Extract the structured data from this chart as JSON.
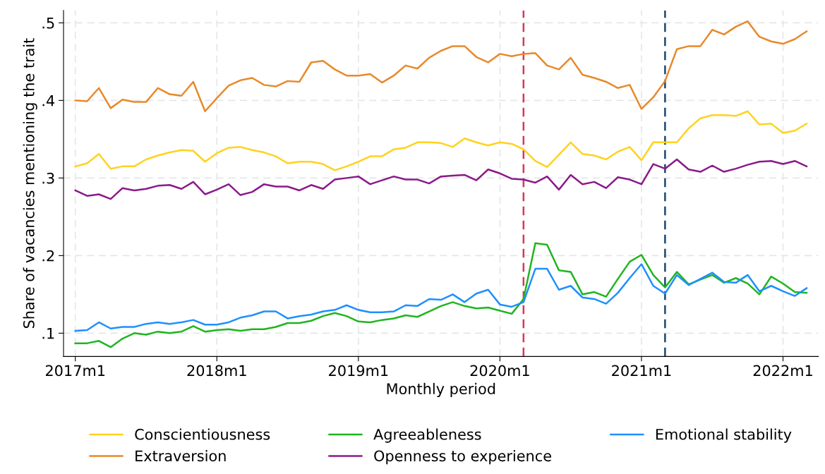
{
  "chart_data": {
    "type": "line",
    "xlabel": "Monthly period",
    "ylabel": "Share of vacancies mentioning the trait",
    "x": [
      "2017-01",
      "2017-02",
      "2017-03",
      "2017-04",
      "2017-05",
      "2017-06",
      "2017-07",
      "2017-08",
      "2017-09",
      "2017-10",
      "2017-11",
      "2017-12",
      "2018-01",
      "2018-02",
      "2018-03",
      "2018-04",
      "2018-05",
      "2018-06",
      "2018-07",
      "2018-08",
      "2018-09",
      "2018-10",
      "2018-11",
      "2018-12",
      "2019-01",
      "2019-02",
      "2019-03",
      "2019-04",
      "2019-05",
      "2019-06",
      "2019-07",
      "2019-08",
      "2019-09",
      "2019-10",
      "2019-11",
      "2019-12",
      "2020-01",
      "2020-02",
      "2020-03",
      "2020-04",
      "2020-05",
      "2020-06",
      "2020-07",
      "2020-08",
      "2020-09",
      "2020-10",
      "2020-11",
      "2020-12",
      "2021-01",
      "2021-02",
      "2021-03",
      "2021-04",
      "2021-05",
      "2021-06",
      "2021-07",
      "2021-08",
      "2021-09",
      "2021-10",
      "2021-11",
      "2021-12",
      "2022-01",
      "2022-02",
      "2022-03"
    ],
    "series": [
      {
        "name": "Conscientiousness",
        "color": "#ffd21f",
        "values": [
          0.315,
          0.319,
          0.331,
          0.312,
          0.315,
          0.315,
          0.324,
          0.329,
          0.333,
          0.336,
          0.335,
          0.321,
          0.332,
          0.339,
          0.34,
          0.336,
          0.333,
          0.328,
          0.319,
          0.321,
          0.321,
          0.318,
          0.31,
          0.315,
          0.321,
          0.328,
          0.328,
          0.337,
          0.339,
          0.346,
          0.346,
          0.345,
          0.34,
          0.351,
          0.346,
          0.342,
          0.346,
          0.344,
          0.337,
          0.322,
          0.314,
          0.33,
          0.346,
          0.331,
          0.329,
          0.324,
          0.334,
          0.34,
          0.323,
          0.346,
          0.346,
          0.346,
          0.364,
          0.377,
          0.381,
          0.381,
          0.38,
          0.386,
          0.369,
          0.37,
          0.358,
          0.361,
          0.37
        ]
      },
      {
        "name": "Extraversion",
        "color": "#e8892b",
        "values": [
          0.4,
          0.399,
          0.416,
          0.39,
          0.401,
          0.398,
          0.398,
          0.416,
          0.408,
          0.406,
          0.424,
          0.386,
          0.403,
          0.419,
          0.426,
          0.429,
          0.42,
          0.418,
          0.425,
          0.424,
          0.449,
          0.451,
          0.44,
          0.432,
          0.432,
          0.434,
          0.423,
          0.432,
          0.445,
          0.441,
          0.455,
          0.464,
          0.47,
          0.47,
          0.456,
          0.449,
          0.46,
          0.457,
          0.46,
          0.461,
          0.445,
          0.44,
          0.455,
          0.433,
          0.429,
          0.424,
          0.416,
          0.42,
          0.389,
          0.404,
          0.425,
          0.466,
          0.47,
          0.47,
          0.491,
          0.485,
          0.495,
          0.502,
          0.482,
          0.476,
          0.473,
          0.479,
          0.489
        ]
      },
      {
        "name": "Agreeableness",
        "color": "#1fb51f",
        "values": [
          0.087,
          0.087,
          0.09,
          0.082,
          0.093,
          0.1,
          0.098,
          0.102,
          0.1,
          0.102,
          0.109,
          0.102,
          0.104,
          0.105,
          0.103,
          0.105,
          0.105,
          0.108,
          0.113,
          0.113,
          0.116,
          0.122,
          0.126,
          0.122,
          0.115,
          0.114,
          0.117,
          0.119,
          0.123,
          0.121,
          0.128,
          0.135,
          0.14,
          0.135,
          0.132,
          0.133,
          0.129,
          0.125,
          0.144,
          0.216,
          0.214,
          0.181,
          0.179,
          0.15,
          0.153,
          0.147,
          0.17,
          0.192,
          0.201,
          0.175,
          0.159,
          0.179,
          0.163,
          0.169,
          0.175,
          0.165,
          0.171,
          0.164,
          0.15,
          0.173,
          0.164,
          0.153,
          0.152
        ]
      },
      {
        "name": "Openness to experience",
        "color": "#8b1a8b",
        "values": [
          0.284,
          0.277,
          0.279,
          0.273,
          0.287,
          0.284,
          0.286,
          0.29,
          0.291,
          0.286,
          0.295,
          0.279,
          0.285,
          0.292,
          0.278,
          0.282,
          0.292,
          0.289,
          0.289,
          0.284,
          0.291,
          0.286,
          0.298,
          0.3,
          0.302,
          0.292,
          0.297,
          0.302,
          0.298,
          0.298,
          0.293,
          0.302,
          0.303,
          0.304,
          0.297,
          0.311,
          0.306,
          0.299,
          0.298,
          0.294,
          0.302,
          0.285,
          0.304,
          0.292,
          0.295,
          0.287,
          0.301,
          0.298,
          0.292,
          0.318,
          0.312,
          0.324,
          0.311,
          0.308,
          0.316,
          0.308,
          0.312,
          0.317,
          0.321,
          0.322,
          0.318,
          0.322,
          0.315
        ]
      },
      {
        "name": "Emotional stability",
        "color": "#1e90ff",
        "values": [
          0.103,
          0.104,
          0.114,
          0.106,
          0.108,
          0.108,
          0.112,
          0.114,
          0.112,
          0.114,
          0.117,
          0.111,
          0.111,
          0.114,
          0.12,
          0.123,
          0.128,
          0.128,
          0.119,
          0.122,
          0.124,
          0.128,
          0.13,
          0.136,
          0.13,
          0.127,
          0.127,
          0.128,
          0.136,
          0.135,
          0.144,
          0.143,
          0.15,
          0.14,
          0.151,
          0.156,
          0.137,
          0.134,
          0.14,
          0.183,
          0.183,
          0.156,
          0.161,
          0.146,
          0.144,
          0.138,
          0.152,
          0.171,
          0.189,
          0.161,
          0.151,
          0.175,
          0.162,
          0.17,
          0.178,
          0.166,
          0.165,
          0.175,
          0.154,
          0.161,
          0.154,
          0.148,
          0.158
        ]
      }
    ],
    "xlim": [
      "2016-12",
      "2022-04"
    ],
    "xticks": [
      {
        "value": "2017-01",
        "label": "2017m1"
      },
      {
        "value": "2018-01",
        "label": "2018m1"
      },
      {
        "value": "2019-01",
        "label": "2019m1"
      },
      {
        "value": "2020-01",
        "label": "2020m1"
      },
      {
        "value": "2021-01",
        "label": "2021m1"
      },
      {
        "value": "2022-01",
        "label": "2022m1"
      }
    ],
    "ylim": [
      0.07,
      0.516
    ],
    "yticks": [
      {
        "value": 0.1,
        "label": ".1"
      },
      {
        "value": 0.2,
        "label": ".2"
      },
      {
        "value": 0.3,
        "label": ".3"
      },
      {
        "value": 0.4,
        "label": ".4"
      },
      {
        "value": 0.5,
        "label": ".5"
      }
    ],
    "ref_lines": [
      {
        "axis": "x",
        "value": "2020-03",
        "color": "#d6375a",
        "line_style": "dashed"
      },
      {
        "axis": "x",
        "value": "2021-03",
        "color": "#1a476f",
        "line_style": "dashed"
      }
    ],
    "grid": true,
    "legend": "bottom",
    "marker": "none",
    "line_style": "solid"
  }
}
